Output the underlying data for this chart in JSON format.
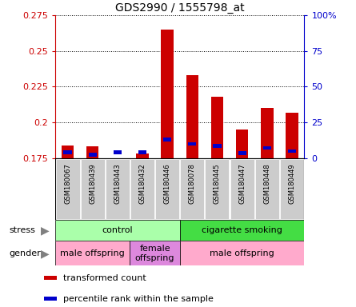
{
  "title": "GDS2990 / 1555798_at",
  "samples": [
    "GSM180067",
    "GSM180439",
    "GSM180443",
    "GSM180432",
    "GSM180446",
    "GSM180078",
    "GSM180445",
    "GSM180447",
    "GSM180448",
    "GSM180449"
  ],
  "red_values": [
    0.184,
    0.183,
    0.175,
    0.178,
    0.265,
    0.233,
    0.218,
    0.195,
    0.21,
    0.207
  ],
  "blue_values": [
    0.179,
    0.1775,
    0.179,
    0.179,
    0.188,
    0.185,
    0.1835,
    0.1785,
    0.182,
    0.18
  ],
  "ymin": 0.175,
  "ymax": 0.275,
  "yticks": [
    0.175,
    0.2,
    0.225,
    0.25,
    0.275
  ],
  "ytick_labels": [
    "0.175",
    "0.2",
    "0.225",
    "0.25",
    "0.275"
  ],
  "right_yticks_pct": [
    0,
    25,
    50,
    75,
    100
  ],
  "stress_groups": [
    {
      "label": "control",
      "start": 0,
      "end": 4,
      "color": "#aaffaa"
    },
    {
      "label": "cigarette smoking",
      "start": 5,
      "end": 9,
      "color": "#44dd44"
    }
  ],
  "gender_groups": [
    {
      "label": "male offspring",
      "start": 0,
      "end": 2,
      "color": "#ffaacc"
    },
    {
      "label": "female\noffspring",
      "start": 3,
      "end": 4,
      "color": "#dd88dd"
    },
    {
      "label": "male offspring",
      "start": 5,
      "end": 9,
      "color": "#ffaacc"
    }
  ],
  "bar_color_red": "#cc0000",
  "bar_color_blue": "#0000cc",
  "bar_width": 0.5,
  "tick_label_color_left": "#cc0000",
  "tick_label_color_right": "#0000cc",
  "xticklabel_bg": "#cccccc",
  "stress_color_label": "#888888",
  "gender_color_label": "#888888"
}
